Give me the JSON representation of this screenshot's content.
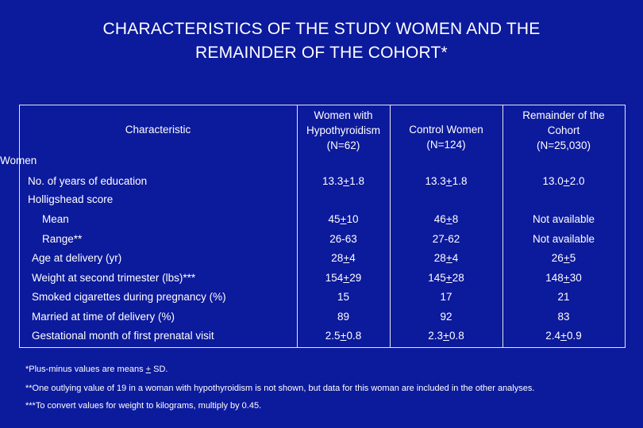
{
  "title_line1": "CHARACTERISTICS OF THE STUDY WOMEN AND THE",
  "title_line2": "REMAINDER OF THE COHORT*",
  "headers": {
    "characteristic": "Characteristic",
    "col1_l1": "Women with",
    "col1_l2": "Hypothyroidism",
    "col1_l3": "(N=62)",
    "col2_l1": "Control Women",
    "col2_l2": "(N=124)",
    "col3_l1": "Remainder of the",
    "col3_l2": "Cohort",
    "col3_l3": "(N=25,030)"
  },
  "sections": {
    "women": "Women",
    "holligshead": "Holligshead score"
  },
  "rows": [
    {
      "label": "No. of years of education",
      "c1": [
        "13.3",
        "+",
        "1.8"
      ],
      "c2": [
        "13.3",
        "+",
        "1.8"
      ],
      "c3": [
        "13.0",
        "+",
        "2.0"
      ]
    },
    {
      "label": "Mean",
      "c1": [
        "45",
        "+",
        "10"
      ],
      "c2": [
        "46",
        "+",
        "8"
      ],
      "c3": [
        "Not available",
        "",
        ""
      ]
    },
    {
      "label": "Range**",
      "c1": [
        "26-63",
        "",
        ""
      ],
      "c2": [
        "27-62",
        "",
        ""
      ],
      "c3": [
        "Not available",
        "",
        ""
      ]
    },
    {
      "label": "Age at delivery (yr)",
      "c1": [
        "28",
        "+",
        "4"
      ],
      "c2": [
        "28",
        "+",
        "4"
      ],
      "c3": [
        "26",
        "+",
        "5"
      ]
    },
    {
      "label": "Weight at second trimester (lbs)***",
      "c1": [
        "154",
        "+",
        "29"
      ],
      "c2": [
        "145",
        "+",
        "28"
      ],
      "c3": [
        "148",
        "+",
        "30"
      ]
    },
    {
      "label": "Smoked cigarettes during pregnancy (%)",
      "c1": [
        "15",
        "",
        ""
      ],
      "c2": [
        "17",
        "",
        ""
      ],
      "c3": [
        "21",
        "",
        ""
      ]
    },
    {
      "label": "Married at time of delivery (%)",
      "c1": [
        "89",
        "",
        ""
      ],
      "c2": [
        "92",
        "",
        ""
      ],
      "c3": [
        "83",
        "",
        ""
      ]
    },
    {
      "label": "Gestational month of first prenatal visit",
      "c1": [
        "2.5",
        "+",
        "0.8"
      ],
      "c2": [
        "2.3",
        "+",
        "0.8"
      ],
      "c3": [
        "2.4",
        "+",
        "0.9"
      ]
    }
  ],
  "footnotes": {
    "f1_pre": "*Plus-minus values are means ",
    "f1_pm": "+",
    "f1_post": " SD.",
    "f2": "**One outlying value of 19 in a woman with hypothyroidism is not shown, but data for this woman are included in the other analyses.",
    "f3": "***To convert values for weight to kilograms, multiply by 0.45."
  }
}
